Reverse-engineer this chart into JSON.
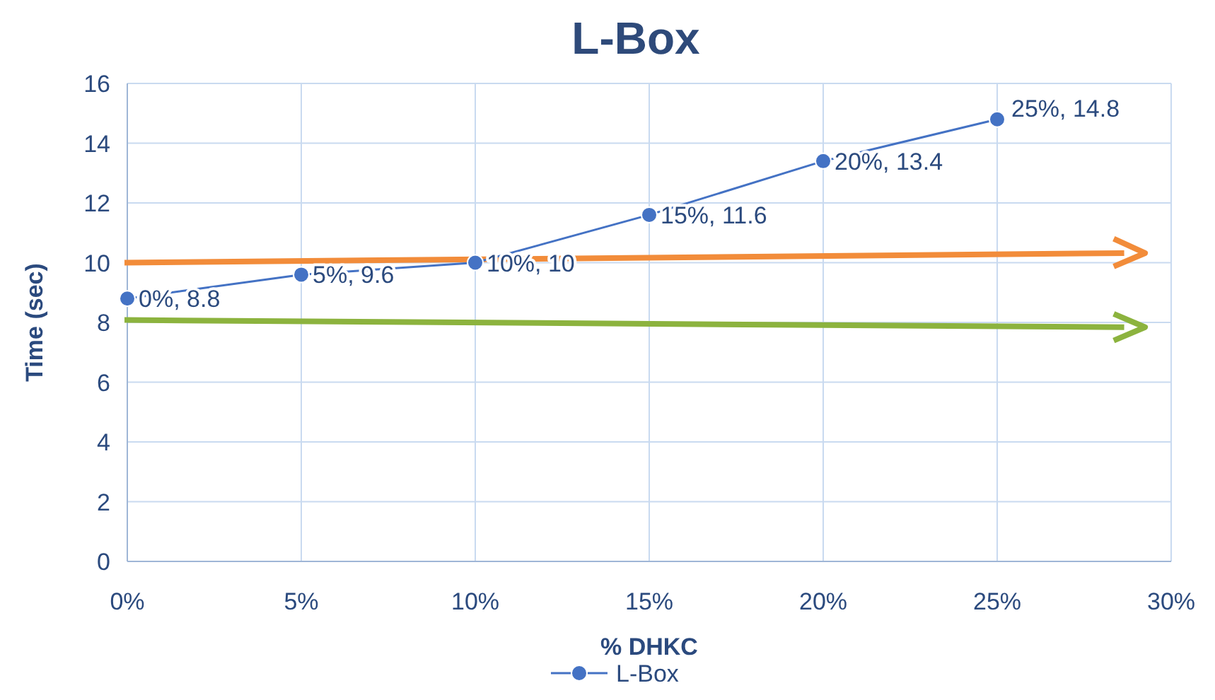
{
  "chart_data": {
    "type": "line",
    "title": "L-Box",
    "xlabel": "% DHKC",
    "ylabel": "Time (sec)",
    "x": [
      0,
      5,
      10,
      15,
      20,
      25
    ],
    "series": [
      {
        "name": "L-Box",
        "color": "#4472c4",
        "values": [
          8.8,
          9.6,
          10,
          11.6,
          13.4,
          14.8
        ],
        "value_labels": [
          "0%, 8.8",
          "5%, 9.6",
          "10%, 10",
          "15%, 11.6",
          "20%, 13.4",
          "25%, 14.8"
        ]
      }
    ],
    "xlim": [
      0,
      30
    ],
    "xticks": [
      {
        "value": 0,
        "label": "0%"
      },
      {
        "value": 5,
        "label": "5%"
      },
      {
        "value": 10,
        "label": "10%"
      },
      {
        "value": 15,
        "label": "15%"
      },
      {
        "value": 20,
        "label": "20%"
      },
      {
        "value": 25,
        "label": "25%"
      },
      {
        "value": 30,
        "label": "30%"
      }
    ],
    "ylim": [
      0,
      16
    ],
    "yticks": [
      0,
      2,
      4,
      6,
      8,
      10,
      12,
      14,
      16
    ],
    "grid": true,
    "legend": "bottom",
    "marker": "circle",
    "line_style": "solid"
  }
}
